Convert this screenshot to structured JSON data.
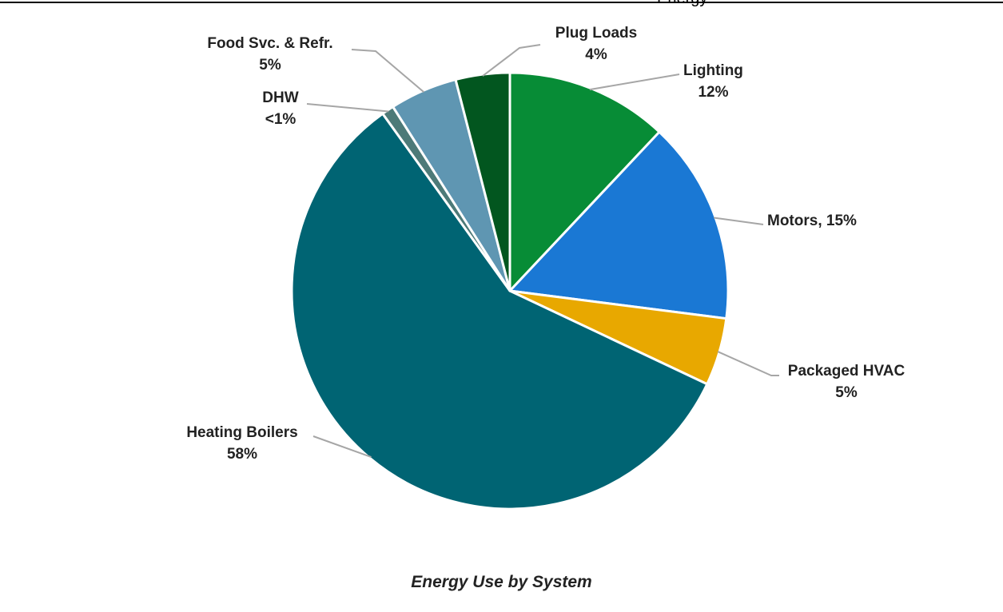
{
  "page": {
    "header_fragment": "Energy",
    "caption": "Energy Use by System"
  },
  "chart_data": {
    "type": "pie",
    "title": "",
    "slices": [
      {
        "name": "Lighting",
        "value": 12,
        "label_line1": "Lighting",
        "label_line2": "12%",
        "color": "#078c36"
      },
      {
        "name": "Motors",
        "value": 15,
        "label_line1": "Motors, 15%",
        "label_line2": "",
        "color": "#1a78d4"
      },
      {
        "name": "Packaged HVAC",
        "value": 5,
        "label_line1": "Packaged HVAC",
        "label_line2": "5%",
        "color": "#e8a800"
      },
      {
        "name": "Heating Boilers",
        "value": 58,
        "label_line1": "Heating Boilers",
        "label_line2": "58%",
        "color": "#006473"
      },
      {
        "name": "DHW",
        "value": 0.9,
        "label_line1": "DHW",
        "label_line2": "<1%",
        "color": "#4d7a78"
      },
      {
        "name": "Food Svc. & Refr.",
        "value": 5,
        "label_line1": "Food Svc. & Refr.",
        "label_line2": "5%",
        "color": "#5f96b2"
      },
      {
        "name": "Plug Loads",
        "value": 4,
        "label_line1": "Plug Loads",
        "label_line2": "4%",
        "color": "#02561f"
      }
    ],
    "start_angle_deg": 0,
    "direction": "clockwise",
    "legend": "none",
    "slice_border_color": "#ffffff",
    "leader_line_color": "#a6a6a6"
  }
}
